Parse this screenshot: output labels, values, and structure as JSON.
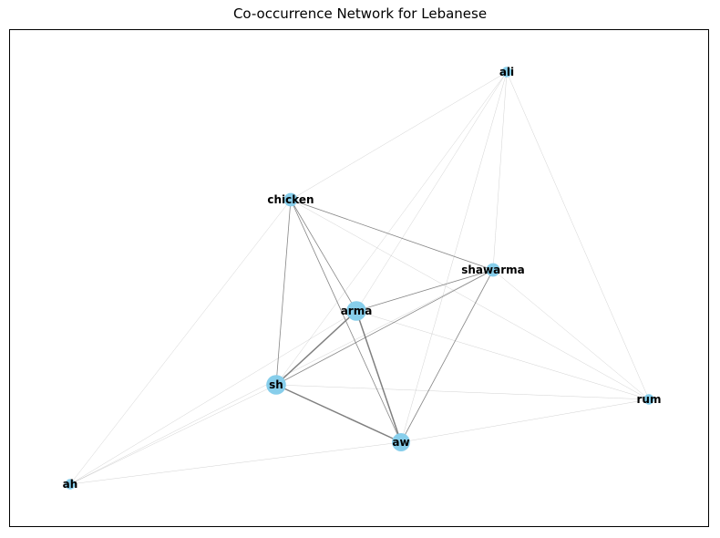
{
  "title": "Co-occurrence Network for Lebanese",
  "colors": {
    "node": "#87ceeb",
    "edge": "#808080",
    "frame": "#000000"
  },
  "nodes": [
    {
      "id": "ali",
      "label": "ali",
      "weight": 1
    },
    {
      "id": "chicken",
      "label": "chicken",
      "weight": 2
    },
    {
      "id": "shawarma",
      "label": "shawarma",
      "weight": 2
    },
    {
      "id": "arma",
      "label": "arma",
      "weight": 4
    },
    {
      "id": "sh",
      "label": "sh",
      "weight": 4
    },
    {
      "id": "aw",
      "label": "aw",
      "weight": 3.5
    },
    {
      "id": "rum",
      "label": "rum",
      "weight": 1
    },
    {
      "id": "ah",
      "label": "ah",
      "weight": 1
    }
  ],
  "edges": [
    {
      "source": "sh",
      "target": "aw",
      "weight": 3
    },
    {
      "source": "sh",
      "target": "arma",
      "weight": 3
    },
    {
      "source": "arma",
      "target": "aw",
      "weight": 3
    },
    {
      "source": "chicken",
      "target": "sh",
      "weight": 2
    },
    {
      "source": "chicken",
      "target": "arma",
      "weight": 2
    },
    {
      "source": "chicken",
      "target": "aw",
      "weight": 2
    },
    {
      "source": "chicken",
      "target": "shawarma",
      "weight": 2
    },
    {
      "source": "shawarma",
      "target": "arma",
      "weight": 2
    },
    {
      "source": "shawarma",
      "target": "sh",
      "weight": 2
    },
    {
      "source": "shawarma",
      "target": "aw",
      "weight": 2
    },
    {
      "source": "ali",
      "target": "chicken",
      "weight": 1
    },
    {
      "source": "ali",
      "target": "shawarma",
      "weight": 1
    },
    {
      "source": "ali",
      "target": "arma",
      "weight": 1
    },
    {
      "source": "ali",
      "target": "sh",
      "weight": 1
    },
    {
      "source": "ali",
      "target": "aw",
      "weight": 1
    },
    {
      "source": "ali",
      "target": "rum",
      "weight": 1
    },
    {
      "source": "rum",
      "target": "sh",
      "weight": 1
    },
    {
      "source": "rum",
      "target": "aw",
      "weight": 1
    },
    {
      "source": "rum",
      "target": "arma",
      "weight": 1
    },
    {
      "source": "rum",
      "target": "chicken",
      "weight": 1
    },
    {
      "source": "rum",
      "target": "shawarma",
      "weight": 1
    },
    {
      "source": "ah",
      "target": "sh",
      "weight": 1
    },
    {
      "source": "ah",
      "target": "arma",
      "weight": 1
    },
    {
      "source": "ah",
      "target": "aw",
      "weight": 1
    },
    {
      "source": "ah",
      "target": "chicken",
      "weight": 1
    },
    {
      "source": "ah",
      "target": "shawarma",
      "weight": 1
    }
  ]
}
